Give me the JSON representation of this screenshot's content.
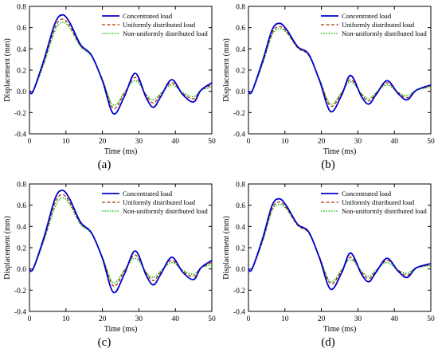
{
  "colors": {
    "concentrated": "#0000cc",
    "uniform": "#aa3300",
    "nonuniform": "#00bb00"
  },
  "panels": [
    {
      "label": "(a)"
    },
    {
      "label": "(b)"
    },
    {
      "label": "(c)"
    },
    {
      "label": "(d)"
    }
  ],
  "chart_data": [
    {
      "type": "line",
      "panel": "(a)",
      "xlabel": "Time (ms)",
      "ylabel": "Displacement (mm)",
      "xlim": [
        0,
        50
      ],
      "ylim": [
        -0.4,
        0.8
      ],
      "xticks": [
        0,
        10,
        20,
        30,
        40,
        50
      ],
      "yticks": [
        -0.4,
        -0.2,
        0.0,
        0.2,
        0.4,
        0.6,
        0.8
      ],
      "tick_labels_y": [
        "-0.4",
        "-0.2",
        "0.0",
        "0.2",
        "0.4",
        "0.6",
        "0.8"
      ],
      "grid": false,
      "legend_position": "top-right",
      "series": [
        {
          "name": "Concentrated load",
          "style": "solid",
          "x": [
            0,
            1,
            4,
            7,
            9,
            11,
            14,
            17,
            20,
            23,
            26,
            29,
            32,
            34,
            36,
            39,
            42,
            45,
            47,
            50
          ],
          "y": [
            0,
            0,
            0.3,
            0.64,
            0.72,
            0.65,
            0.44,
            0.34,
            0.1,
            -0.21,
            -0.05,
            0.17,
            -0.06,
            -0.15,
            -0.05,
            0.11,
            -0.03,
            -0.1,
            0.01,
            0.08
          ]
        },
        {
          "name": "Uniformly distributed load",
          "style": "dashed",
          "x": [
            0,
            1,
            4,
            7,
            9,
            11,
            14,
            17,
            20,
            23,
            26,
            29,
            32,
            34,
            36,
            39,
            42,
            45,
            47,
            50
          ],
          "y": [
            0,
            0,
            0.28,
            0.6,
            0.68,
            0.62,
            0.43,
            0.34,
            0.11,
            -0.16,
            -0.02,
            0.13,
            -0.04,
            -0.11,
            -0.03,
            0.08,
            -0.02,
            -0.07,
            0.01,
            0.06
          ]
        },
        {
          "name": "Non-uniformly distributed load",
          "style": "dotted",
          "x": [
            0,
            1,
            4,
            7,
            9,
            11,
            14,
            17,
            20,
            23,
            26,
            29,
            32,
            34,
            36,
            39,
            42,
            45,
            47,
            50
          ],
          "y": [
            0,
            0,
            0.26,
            0.57,
            0.65,
            0.6,
            0.42,
            0.33,
            0.11,
            -0.13,
            -0.01,
            0.1,
            -0.03,
            -0.08,
            -0.02,
            0.06,
            -0.01,
            -0.05,
            0.01,
            0.04
          ]
        }
      ]
    },
    {
      "type": "line",
      "panel": "(b)",
      "xlabel": "Time (ms)",
      "ylabel": "Displacement (mm)",
      "xlim": [
        0,
        50
      ],
      "ylim": [
        -0.4,
        0.8
      ],
      "xticks": [
        0,
        10,
        20,
        30,
        40,
        50
      ],
      "yticks": [
        -0.4,
        -0.2,
        0.0,
        0.2,
        0.4,
        0.6,
        0.8
      ],
      "tick_labels_y": [
        "-0.4",
        "-0.2",
        "0.0",
        "0.2",
        "0.4",
        "0.6",
        "0.8"
      ],
      "grid": false,
      "legend_position": "top-right",
      "series": [
        {
          "name": "Concentrated load",
          "style": "solid",
          "x": [
            0,
            1,
            4,
            6.5,
            8.5,
            10.5,
            13.5,
            16.5,
            19.5,
            22.5,
            25.5,
            28,
            31,
            33,
            35,
            38,
            41,
            43.5,
            46,
            50
          ],
          "y": [
            0,
            0,
            0.3,
            0.58,
            0.64,
            0.58,
            0.42,
            0.35,
            0.1,
            -0.19,
            -0.04,
            0.15,
            -0.05,
            -0.12,
            -0.03,
            0.1,
            -0.02,
            -0.08,
            0.01,
            0.06
          ]
        },
        {
          "name": "Uniformly distributed load",
          "style": "dashed",
          "x": [
            0,
            1,
            4,
            6.5,
            8.5,
            10.5,
            13.5,
            16.5,
            19.5,
            22.5,
            25.5,
            28,
            31,
            33,
            35,
            38,
            41,
            43.5,
            46,
            50
          ],
          "y": [
            0,
            0,
            0.28,
            0.55,
            0.61,
            0.56,
            0.41,
            0.34,
            0.11,
            -0.14,
            -0.02,
            0.11,
            -0.03,
            -0.09,
            -0.02,
            0.08,
            -0.01,
            -0.06,
            0.01,
            0.05
          ]
        },
        {
          "name": "Non-uniformly distributed load",
          "style": "dotted",
          "x": [
            0,
            1,
            4,
            6.5,
            8.5,
            10.5,
            13.5,
            16.5,
            19.5,
            22.5,
            25.5,
            28,
            31,
            33,
            35,
            38,
            41,
            43.5,
            46,
            50
          ],
          "y": [
            0,
            0,
            0.27,
            0.53,
            0.59,
            0.55,
            0.41,
            0.34,
            0.11,
            -0.12,
            -0.01,
            0.09,
            -0.02,
            -0.07,
            -0.01,
            0.06,
            -0.01,
            -0.04,
            0.01,
            0.04
          ]
        }
      ]
    },
    {
      "type": "line",
      "panel": "(c)",
      "xlabel": "Time (ms)",
      "ylabel": "Displacement (mm)",
      "xlim": [
        0,
        50
      ],
      "ylim": [
        -0.4,
        0.8
      ],
      "xticks": [
        0,
        10,
        20,
        30,
        40,
        50
      ],
      "yticks": [
        -0.4,
        -0.2,
        0.0,
        0.2,
        0.4,
        0.6,
        0.8
      ],
      "tick_labels_y": [
        "-0.4",
        "-0.2",
        "0.0",
        "0.2",
        "0.4",
        "0.6",
        "0.8"
      ],
      "grid": false,
      "legend_position": "top-right",
      "series": [
        {
          "name": "Concentrated load",
          "style": "solid",
          "x": [
            0,
            1,
            4,
            7,
            9,
            11,
            14,
            17,
            20,
            23,
            26,
            29,
            32,
            34,
            36,
            39,
            42,
            45,
            47,
            50
          ],
          "y": [
            0,
            0,
            0.3,
            0.66,
            0.74,
            0.66,
            0.44,
            0.34,
            0.1,
            -0.22,
            -0.05,
            0.17,
            -0.06,
            -0.15,
            -0.05,
            0.11,
            -0.03,
            -0.1,
            0.01,
            0.08
          ]
        },
        {
          "name": "Uniformly distributed load",
          "style": "dashed",
          "x": [
            0,
            1,
            4,
            7,
            9,
            11,
            14,
            17,
            20,
            23,
            26,
            29,
            32,
            34,
            36,
            39,
            42,
            45,
            47,
            50
          ],
          "y": [
            0,
            0,
            0.28,
            0.62,
            0.7,
            0.63,
            0.43,
            0.34,
            0.11,
            -0.16,
            -0.02,
            0.13,
            -0.04,
            -0.11,
            -0.03,
            0.08,
            -0.02,
            -0.07,
            0.01,
            0.06
          ]
        },
        {
          "name": "Non-uniformly distributed load",
          "style": "dotted",
          "x": [
            0,
            1,
            4,
            7,
            9,
            11,
            14,
            17,
            20,
            23,
            26,
            29,
            32,
            34,
            36,
            39,
            42,
            45,
            47,
            50
          ],
          "y": [
            0,
            0,
            0.27,
            0.58,
            0.67,
            0.61,
            0.42,
            0.33,
            0.11,
            -0.13,
            -0.01,
            0.1,
            -0.03,
            -0.08,
            -0.02,
            0.06,
            -0.01,
            -0.05,
            0.01,
            0.04
          ]
        }
      ]
    },
    {
      "type": "line",
      "panel": "(d)",
      "xlabel": "Time (ms)",
      "ylabel": "Displacement (mm)",
      "xlim": [
        0,
        50
      ],
      "ylim": [
        -0.4,
        0.8
      ],
      "xticks": [
        0,
        10,
        20,
        30,
        40,
        50
      ],
      "yticks": [
        -0.4,
        -0.2,
        0.0,
        0.2,
        0.4,
        0.6,
        0.8
      ],
      "tick_labels_y": [
        "-0.4",
        "-0.2",
        "0.0",
        "0.2",
        "0.4",
        "0.6",
        "0.8"
      ],
      "grid": false,
      "legend_position": "top-right",
      "series": [
        {
          "name": "Concentrated load",
          "style": "solid",
          "x": [
            0,
            1,
            4,
            6.5,
            8.5,
            10.5,
            13.5,
            16.5,
            19.5,
            22.5,
            25.5,
            28,
            31,
            33,
            35,
            38,
            41,
            43.5,
            46,
            50
          ],
          "y": [
            0,
            0,
            0.3,
            0.6,
            0.66,
            0.59,
            0.42,
            0.35,
            0.1,
            -0.19,
            -0.04,
            0.15,
            -0.05,
            -0.12,
            -0.03,
            0.1,
            -0.02,
            -0.08,
            0.01,
            0.05
          ]
        },
        {
          "name": "Uniformly distributed load",
          "style": "dashed",
          "x": [
            0,
            1,
            4,
            6.5,
            8.5,
            10.5,
            13.5,
            16.5,
            19.5,
            22.5,
            25.5,
            28,
            31,
            33,
            35,
            38,
            41,
            43.5,
            46,
            50
          ],
          "y": [
            0,
            0,
            0.28,
            0.57,
            0.63,
            0.57,
            0.41,
            0.34,
            0.11,
            -0.14,
            -0.02,
            0.11,
            -0.03,
            -0.09,
            -0.02,
            0.08,
            -0.01,
            -0.06,
            0.01,
            0.04
          ]
        },
        {
          "name": "Non-uniformly distributed load",
          "style": "dotted",
          "x": [
            0,
            1,
            4,
            6.5,
            8.5,
            10.5,
            13.5,
            16.5,
            19.5,
            22.5,
            25.5,
            28,
            31,
            33,
            35,
            38,
            41,
            43.5,
            46,
            50
          ],
          "y": [
            0,
            0,
            0.27,
            0.55,
            0.61,
            0.56,
            0.41,
            0.34,
            0.11,
            -0.12,
            -0.01,
            0.09,
            -0.02,
            -0.07,
            -0.01,
            0.06,
            -0.01,
            -0.04,
            0.01,
            0.03
          ]
        }
      ]
    }
  ]
}
